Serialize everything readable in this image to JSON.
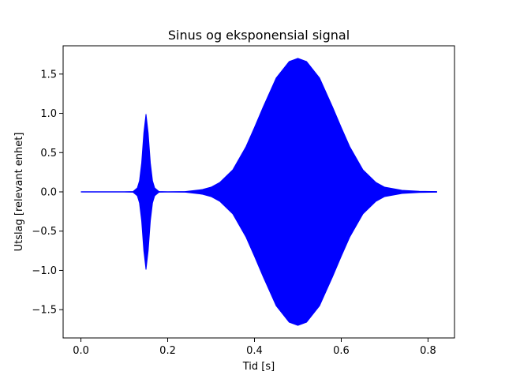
{
  "chart_data": {
    "type": "line",
    "title": "Sinus og eksponensial signal",
    "xlabel": "Tid [s]",
    "ylabel": "Utslag [relevant enhet]",
    "xlim": [
      -0.041,
      0.861
    ],
    "ylim": [
      -1.86,
      1.86
    ],
    "xticks": [
      0.0,
      0.2,
      0.4,
      0.6,
      0.8
    ],
    "xtick_labels": [
      "0.0",
      "0.2",
      "0.4",
      "0.6",
      "0.8"
    ],
    "yticks": [
      -1.5,
      -1.0,
      -0.5,
      0.0,
      0.5,
      1.0,
      1.5
    ],
    "ytick_labels": [
      "−1.5",
      "−1.0",
      "−0.5",
      "0.0",
      "0.5",
      "1.0",
      "1.5"
    ],
    "grid": false,
    "series": [
      {
        "color": "#0000ff",
        "x_range": [
          0.0,
          0.82
        ],
        "envelope": {
          "x": [
            0.0,
            0.1,
            0.12,
            0.13,
            0.135,
            0.14,
            0.145,
            0.15,
            0.155,
            0.16,
            0.165,
            0.17,
            0.18,
            0.2,
            0.24,
            0.28,
            0.3,
            0.32,
            0.35,
            0.38,
            0.4,
            0.42,
            0.45,
            0.48,
            0.5,
            0.52,
            0.55,
            0.58,
            0.6,
            0.62,
            0.65,
            0.68,
            0.7,
            0.74,
            0.78,
            0.82
          ],
          "amplitude": [
            0.0,
            0.0,
            0.004,
            0.05,
            0.14,
            0.37,
            0.75,
            0.99,
            0.75,
            0.37,
            0.14,
            0.05,
            0.004,
            0.0,
            0.004,
            0.03,
            0.06,
            0.12,
            0.28,
            0.57,
            0.82,
            1.08,
            1.45,
            1.66,
            1.7,
            1.66,
            1.45,
            1.08,
            0.82,
            0.57,
            0.28,
            0.12,
            0.06,
            0.02,
            0.008,
            0.004
          ]
        }
      }
    ]
  }
}
